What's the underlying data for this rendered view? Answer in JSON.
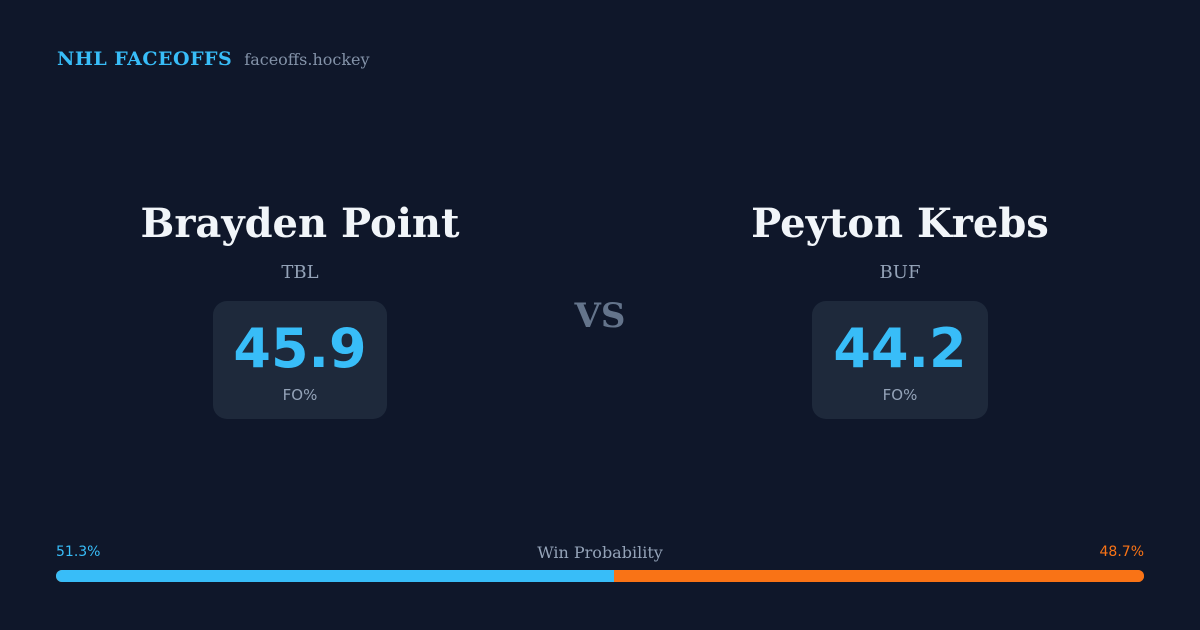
{
  "header": {
    "brand": "NHL FACEOFFS",
    "site": "faceoffs.hockey"
  },
  "players": {
    "left": {
      "name": "Brayden Point",
      "team": "TBL",
      "value": "45.9",
      "label": "FO%"
    },
    "right": {
      "name": "Peyton Krebs",
      "team": "BUF",
      "value": "44.2",
      "label": "FO%"
    }
  },
  "vs": "VS",
  "probability": {
    "title": "Win Probability",
    "left_text": "51.3%",
    "right_text": "48.7%",
    "left_fraction": 0.513,
    "right_fraction": 0.487
  },
  "colors": {
    "background": "#0f172a",
    "accent_left": "#38bdf8",
    "accent_right": "#f97316",
    "card": "#1e293b"
  }
}
